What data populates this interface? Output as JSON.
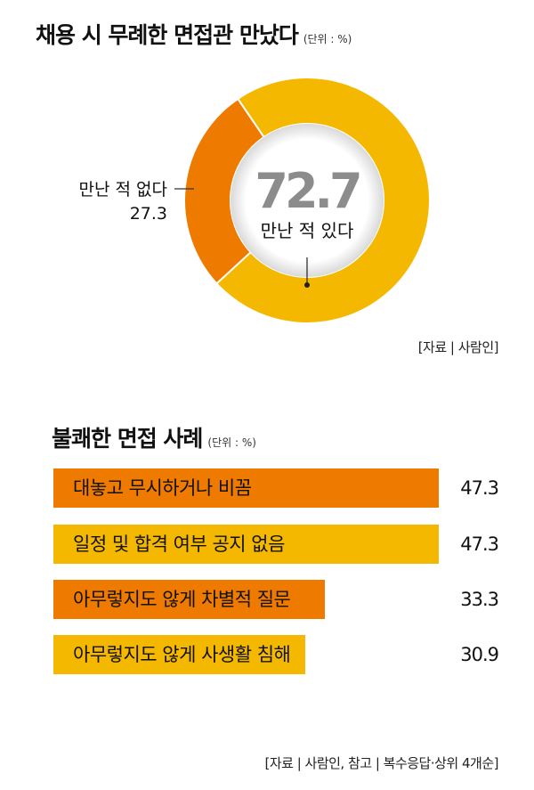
{
  "chart_data": [
    {
      "type": "pie",
      "title": "채용 시 무례한 면접관 만났다",
      "unit": "(단위 : %)",
      "categories": [
        "만난 적 있다",
        "만난 적 없다"
      ],
      "values": [
        72.7,
        27.3
      ],
      "value_labels": [
        "72.7",
        "27.3"
      ],
      "colors": [
        "#F5B800",
        "#EE7A00"
      ],
      "source": "[자료 | 사람인]"
    },
    {
      "type": "bar",
      "title": "불쾌한 면접 사례",
      "unit": "(단위 : %)",
      "categories": [
        "대놓고 무시하거나 비꼼",
        "일정 및 합격 여부 공지 없음",
        "아무렇지도 않게 차별적 질문",
        "아무렇지도 않게 사생활 침해"
      ],
      "values": [
        47.3,
        47.3,
        33.3,
        30.9
      ],
      "value_labels": [
        "47.3",
        "47.3",
        "33.3",
        "30.9"
      ],
      "colors": [
        "#EE7A00",
        "#F5B800",
        "#EE7A00",
        "#F5B800"
      ],
      "source": "[자료 | 사람인, 참고 | 복수응답·상위 4개순]"
    }
  ]
}
